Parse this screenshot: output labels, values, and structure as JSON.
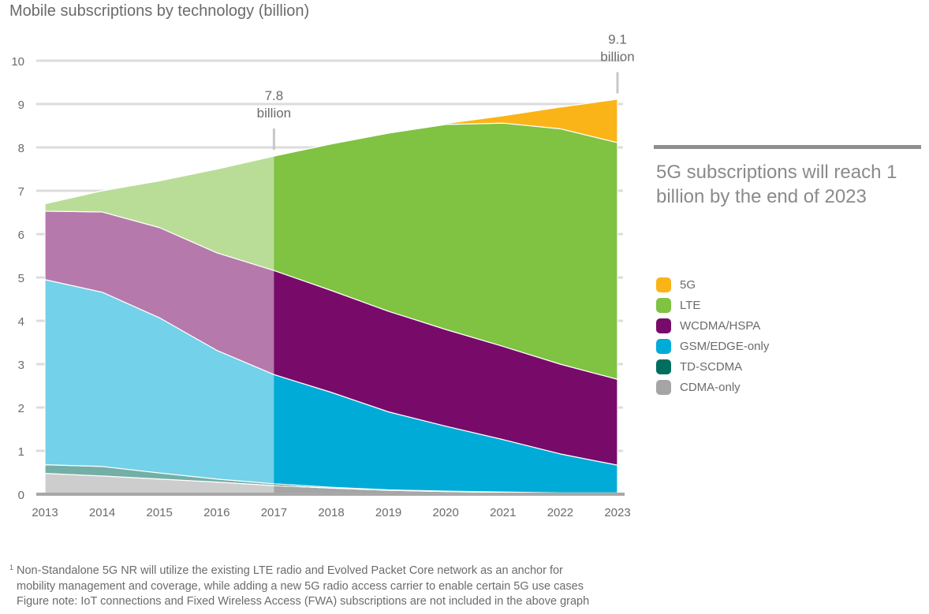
{
  "chart_data": {
    "type": "area",
    "stacked": true,
    "title": "Mobile subscriptions by technology (billion)",
    "x": [
      2013,
      2014,
      2015,
      2016,
      2017,
      2018,
      2019,
      2020,
      2021,
      2022,
      2023
    ],
    "x_tick_labels": [
      "2013",
      "2014",
      "2015",
      "2016",
      "2017",
      "2018",
      "2019",
      "2020",
      "2021",
      "2022",
      "2023"
    ],
    "ylim": [
      0,
      10
    ],
    "y_ticks": [
      "0",
      "1",
      "2",
      "3",
      "4",
      "5",
      "6",
      "7",
      "8",
      "9",
      "10"
    ],
    "grid": true,
    "forecast_from": 2017,
    "series": [
      {
        "name": "CDMA-only",
        "color": "#a5a5a5",
        "values": [
          0.48,
          0.42,
          0.35,
          0.28,
          0.2,
          0.14,
          0.09,
          0.06,
          0.04,
          0.03,
          0.03
        ]
      },
      {
        "name": "TD-SCDMA",
        "color": "#006e5f",
        "values": [
          0.2,
          0.22,
          0.14,
          0.07,
          0.04,
          0.02,
          0.01,
          0.01,
          0.01,
          0.0,
          0.0
        ]
      },
      {
        "name": "GSM/EDGE-only",
        "color": "#00acd7",
        "values": [
          4.27,
          4.02,
          3.58,
          2.97,
          2.52,
          2.19,
          1.8,
          1.5,
          1.21,
          0.9,
          0.64
        ]
      },
      {
        "name": "WCDMA/HSPA",
        "color": "#780b69",
        "values": [
          1.58,
          1.85,
          2.08,
          2.25,
          2.4,
          2.35,
          2.32,
          2.23,
          2.15,
          2.07,
          1.98
        ]
      },
      {
        "name": "LTE",
        "color": "#80c242",
        "values": [
          0.17,
          0.49,
          1.08,
          1.93,
          2.64,
          3.38,
          4.11,
          4.73,
          5.15,
          5.43,
          5.46
        ]
      },
      {
        "name": "5G",
        "color": "#fab418",
        "values": [
          0,
          0,
          0,
          0,
          0,
          0,
          0,
          0.02,
          0.17,
          0.5,
          1.0
        ]
      }
    ],
    "legend_order": [
      "5G",
      "LTE",
      "WCDMA/HSPA",
      "GSM/EDGE-only",
      "TD-SCDMA",
      "CDMA-only"
    ],
    "legend_position": "right",
    "annotations": [
      {
        "x": 2017,
        "value": 7.8,
        "line1": "7.8",
        "line2": "billion"
      },
      {
        "x": 2023,
        "value": 9.1,
        "line1": "9.1",
        "line2": "billion"
      }
    ]
  },
  "headline": "5G subscriptions will reach 1 billion by the end of 2023",
  "footnotes": {
    "marker": "1",
    "note1_line1": "Non-Standalone 5G NR will utilize the existing LTE radio and Evolved Packet Core network as an anchor for",
    "note1_line2": "mobility management and coverage, while adding a new 5G radio access carrier to enable certain 5G use cases",
    "figure_note": "Figure note: IoT connections and Fixed Wireless Access (FWA) subscriptions are not included in the above graph"
  }
}
